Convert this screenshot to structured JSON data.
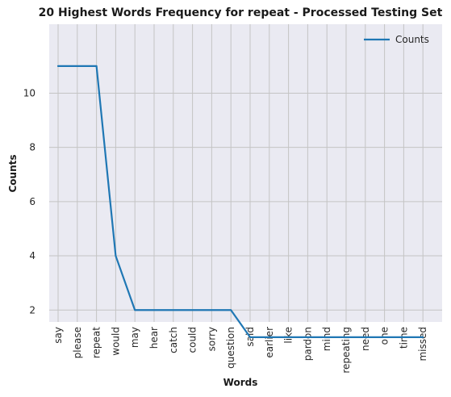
{
  "chart_data": {
    "type": "line",
    "title": "20 Highest Words Frequency for repeat - Processed Testing Set",
    "xlabel": "Words",
    "ylabel": "Counts",
    "categories": [
      "say",
      "please",
      "repeat",
      "would",
      "may",
      "hear",
      "catch",
      "could",
      "sorry",
      "question",
      "said",
      "earlier",
      "like",
      "pardon",
      "mind",
      "repeating",
      "need",
      "one",
      "time",
      "missed"
    ],
    "series": [
      {
        "name": "Counts",
        "color": "#1f77b4",
        "values": [
          11,
          11,
          11,
          4,
          2,
          2,
          2,
          2,
          2,
          2,
          1,
          1,
          1,
          1,
          1,
          1,
          1,
          1,
          1,
          1
        ]
      }
    ],
    "yticks": [
      2,
      4,
      6,
      8,
      10
    ],
    "ylim": [
      0.5,
      11.5
    ],
    "grid": true,
    "legend_position": "top-right",
    "background_color": "#eaeaf2",
    "grid_color": "#c4c4c4"
  }
}
